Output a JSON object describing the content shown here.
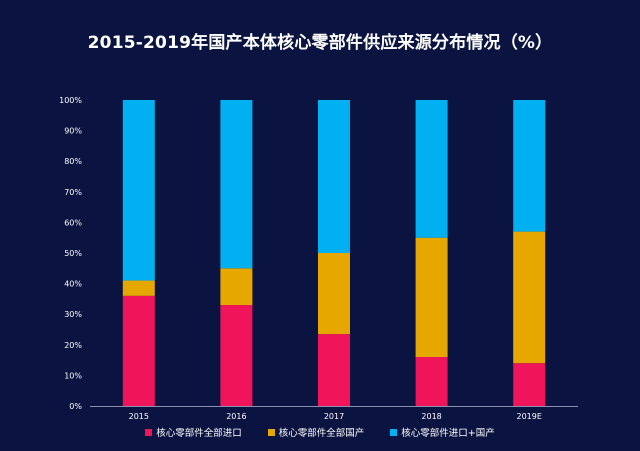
{
  "chart_data": {
    "type": "bar",
    "stacked": true,
    "title": "2015-2019年国产本体核心零部件供应来源分布情况（%）",
    "categories": [
      "2015",
      "2016",
      "2017",
      "2018",
      "2019E"
    ],
    "series": [
      {
        "name": "核心零部件全部进口",
        "color": "#f0145a",
        "values": [
          36,
          33,
          23.5,
          16,
          14
        ]
      },
      {
        "name": "核心零部件全部国产",
        "color": "#e6a800",
        "values": [
          5,
          12,
          26.5,
          39,
          43
        ]
      },
      {
        "name": "核心零部件进口+国产",
        "color": "#00b0f0",
        "values": [
          59,
          55,
          50,
          45,
          43
        ]
      }
    ],
    "ylim": [
      0,
      100
    ],
    "yticks": [
      "0%",
      "10%",
      "20%",
      "30%",
      "40%",
      "50%",
      "60%",
      "70%",
      "80%",
      "90%",
      "100%"
    ],
    "grid": false,
    "legend_position": "bottom"
  }
}
